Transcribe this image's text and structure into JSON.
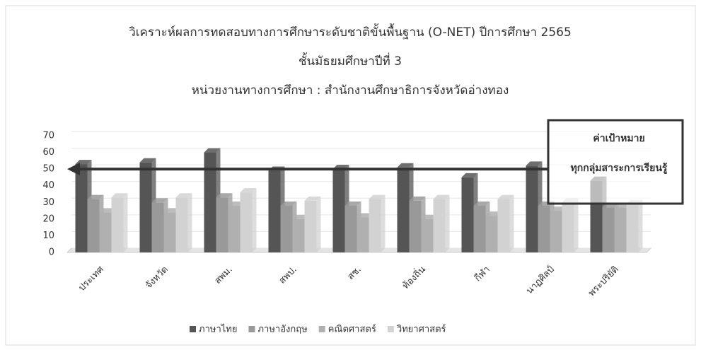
{
  "chart_data": {
    "type": "bar",
    "title": "วิเคราะห์ผลการทดสอบทางการศึกษาระดับชาติขั้นพื้นฐาน (O-NET) ปีการศึกษา 2565",
    "subtitle": [
      "ชั้นมัธยมศึกษาปีที่ 3",
      "หน่วยงานทางการศึกษา : สำนักงานศึกษาธิการจังหวัดอ่างทอง"
    ],
    "categories": [
      "ประเทศ",
      "จังหวัด",
      "สพม.",
      "สพป.",
      "สช.",
      "ท้องถิ่น",
      "กีฬา",
      "นาฏศิลป์",
      "พระปริยัติ"
    ],
    "series": [
      {
        "name": "ภาษาไทย",
        "color": "#555555",
        "values": [
          53,
          54,
          60,
          49,
          50,
          51,
          45,
          52,
          43
        ]
      },
      {
        "name": "ภาษาอังกฤษ",
        "color": "#999999",
        "values": [
          32,
          30,
          33,
          28,
          28,
          31,
          28,
          28,
          27
        ]
      },
      {
        "name": "คณิตศาสตร์",
        "color": "#b0b0b0",
        "values": [
          24,
          24,
          28,
          20,
          21,
          20,
          22,
          25,
          27
        ]
      },
      {
        "name": "วิทยาศาสตร์",
        "color": "#d2d2d2",
        "values": [
          33,
          33,
          36,
          31,
          32,
          32,
          32,
          30,
          29
        ]
      }
    ],
    "ylim": [
      0,
      70
    ],
    "yticks": [
      0,
      10,
      20,
      30,
      40,
      50,
      60,
      70
    ],
    "grid": true,
    "legend": "bottom",
    "target": {
      "value": 50,
      "label": [
        "ค่าเป้าหมาย",
        "ทุกกลุ่มสาระการเรียนรู้"
      ]
    }
  }
}
